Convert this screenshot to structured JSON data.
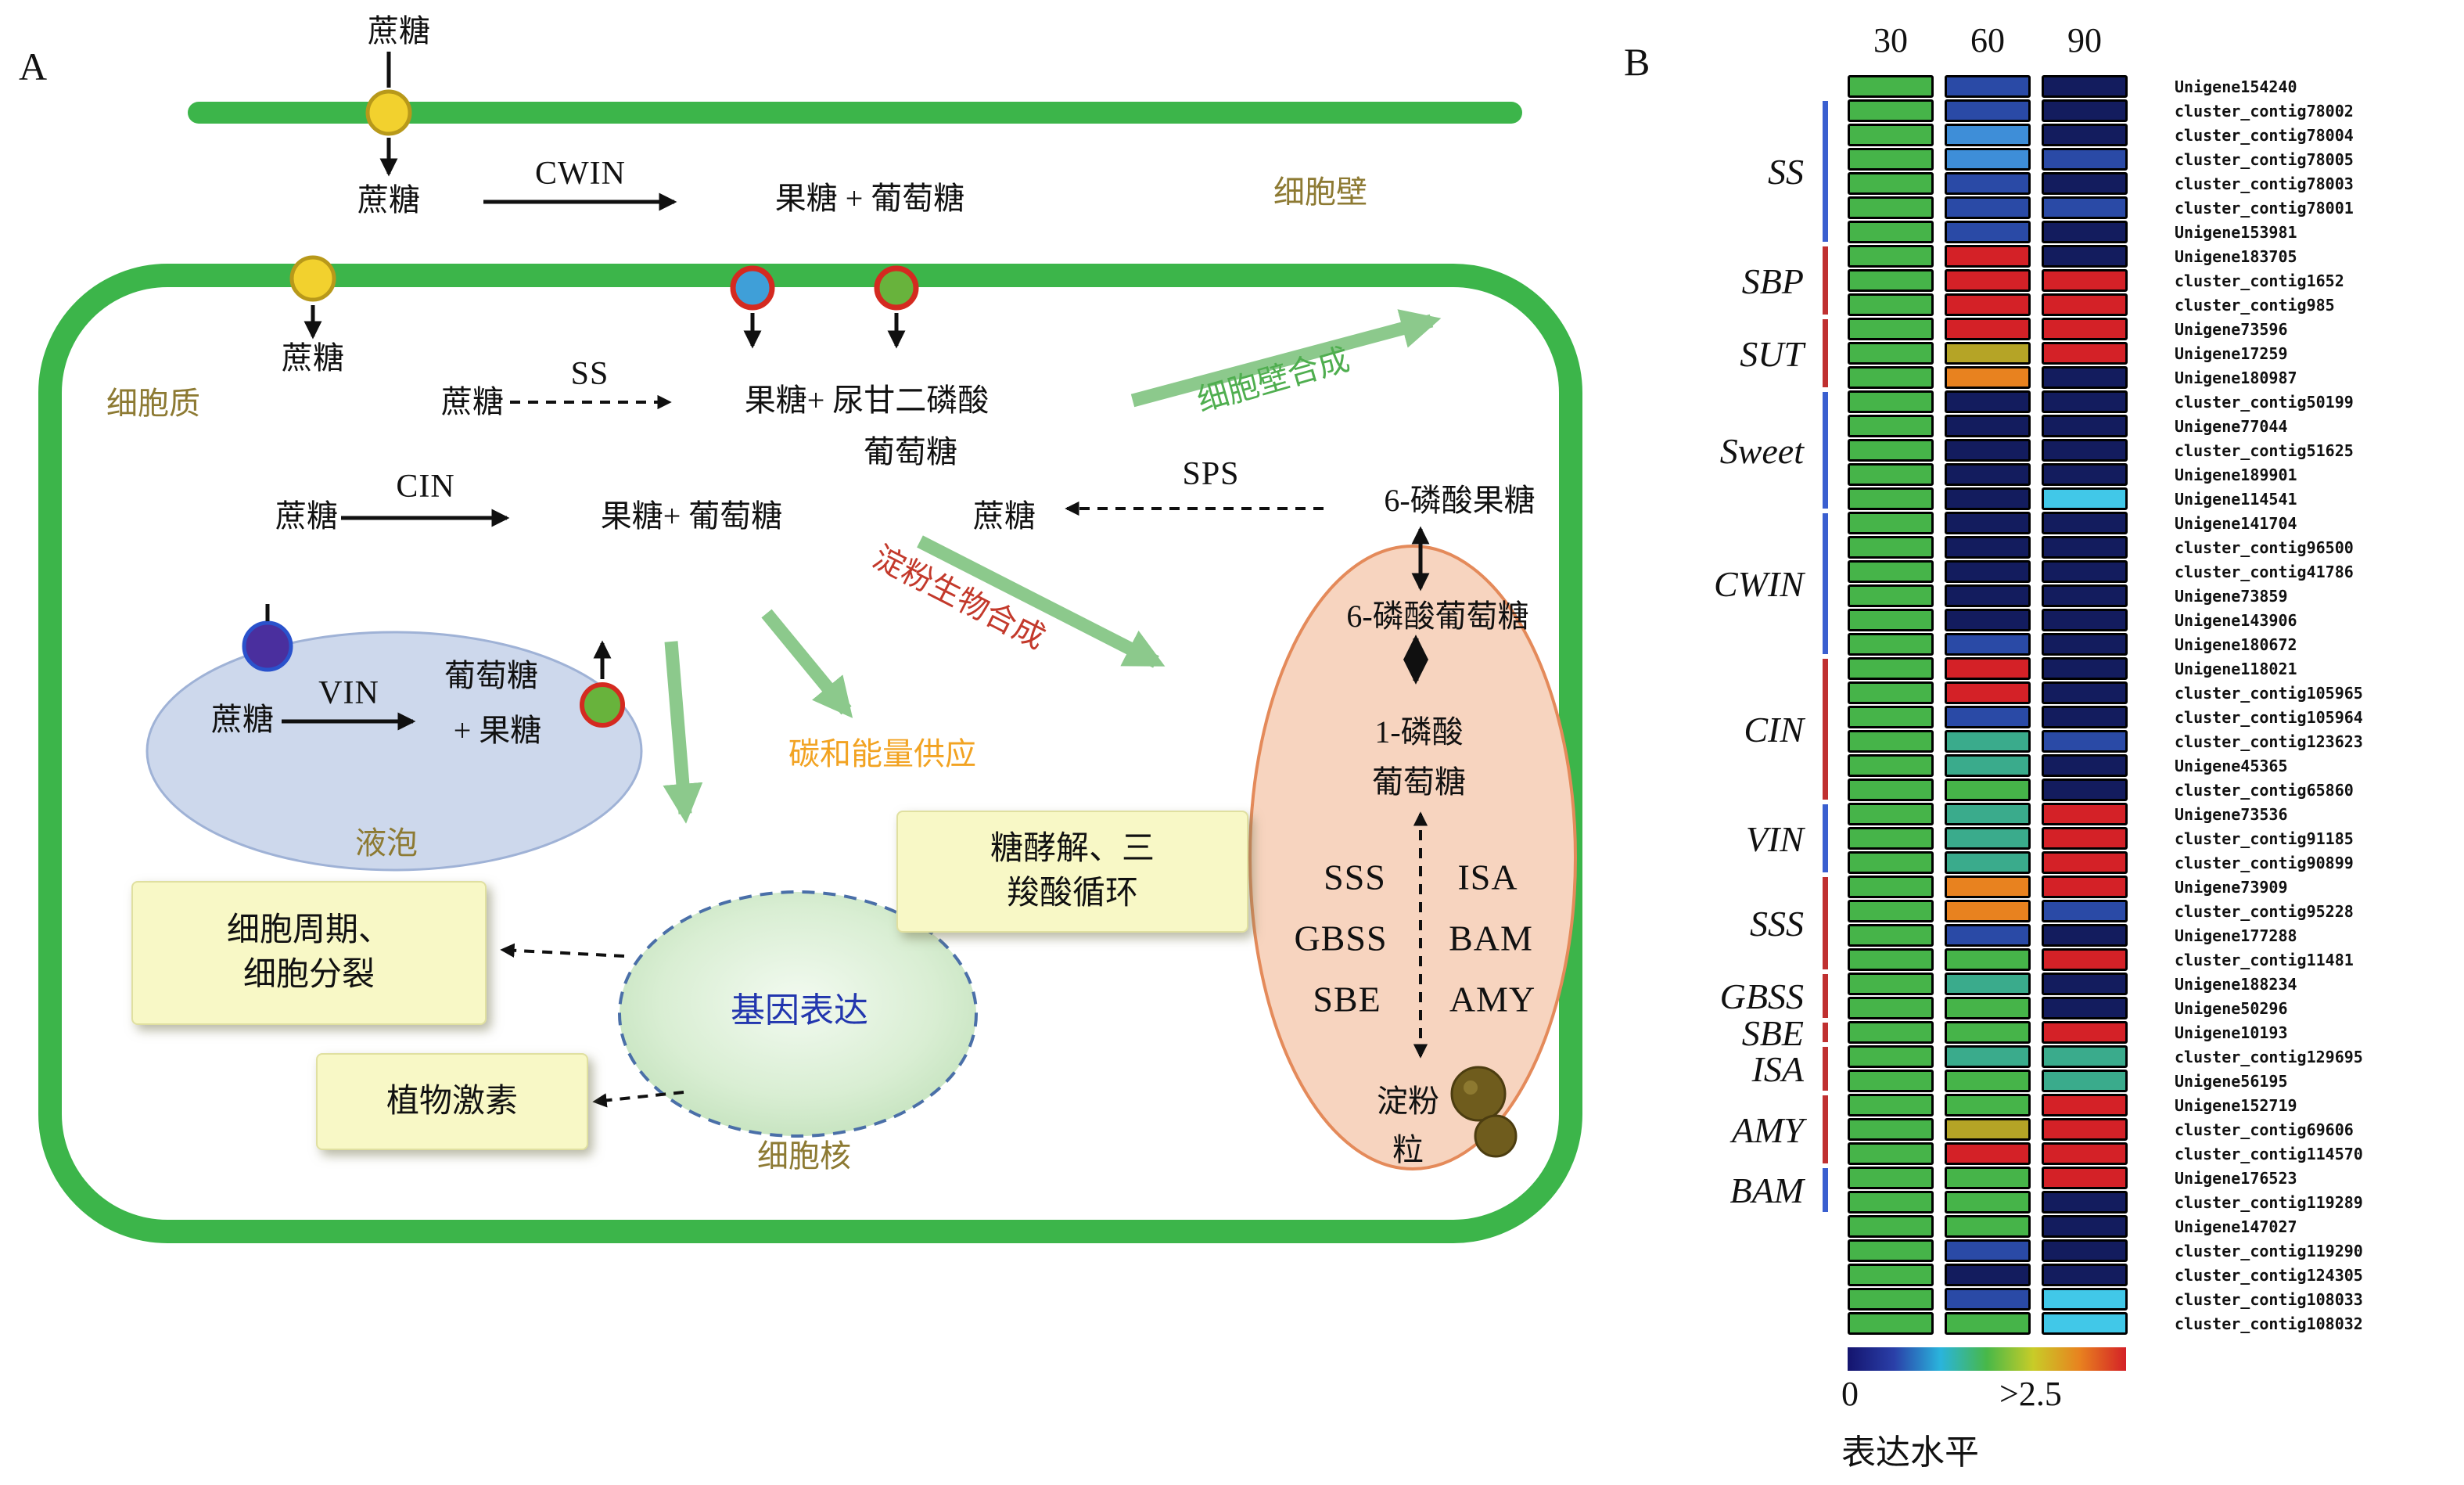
{
  "figure": {
    "panelA_label": "A",
    "panelB_label": "B"
  },
  "panelA": {
    "sucrose": "蔗糖",
    "cwin": "CWIN",
    "fructose_plus_glucose_spaced": "果糖 + 葡萄糖",
    "cell_wall": "细胞壁",
    "cytoplasm": "细胞质",
    "ss": "SS",
    "fructose_udp_glucose": "果糖+ 尿甘二磷酸",
    "glucose": "葡萄糖",
    "cell_wall_synthesis": "细胞壁合成",
    "cin": "CIN",
    "fructose_plus_glucose": "果糖+ 葡萄糖",
    "sps": "SPS",
    "fructose_6_phosphate": "6-磷酸果糖",
    "glucose_6_phosphate": "6-磷酸葡萄糖",
    "glucose_1_phosphate_line1": "1-磷酸",
    "starch_biosynthesis": "淀粉生物合成",
    "sss": "SSS",
    "isa": "ISA",
    "gbss": "GBSS",
    "bam": "BAM",
    "sbe": "SBE",
    "amy": "AMY",
    "starch_granule_line1": "淀粉",
    "starch_granule_line2": "粒",
    "vin": "VIN",
    "plus_fructose": "+ 果糖",
    "vacuole": "液泡",
    "carbon_energy_supply": "碳和能量供应",
    "glycolysis_tca_line1": "糖酵解、三",
    "glycolysis_tca_line2": "羧酸循环",
    "cell_cycle_line1": "细胞周期、",
    "cell_cycle_line2": "细胞分裂",
    "plant_hormone": "植物激素",
    "gene_expression": "基因表达",
    "nucleus": "细胞核"
  },
  "panelB": {
    "groups": [
      {
        "label": "SS",
        "bar": "#3a5fd0",
        "start": 2,
        "end": 7
      },
      {
        "label": "SBP",
        "bar": "#c03030",
        "start": 8,
        "end": 10
      },
      {
        "label": "SUT",
        "bar": "#c03030",
        "start": 11,
        "end": 13
      },
      {
        "label": "Sweet",
        "bar": "#3a5fd0",
        "start": 14,
        "end": 18
      },
      {
        "label": "CWIN",
        "bar": "#3a5fd0",
        "start": 19,
        "end": 24
      },
      {
        "label": "CIN",
        "bar": "#c03030",
        "start": 25,
        "end": 30
      },
      {
        "label": "VIN",
        "bar": "#3a5fd0",
        "start": 31,
        "end": 33
      },
      {
        "label": "SSS",
        "bar": "#c03030",
        "start": 34,
        "end": 37
      },
      {
        "label": "GBSS",
        "bar": "#c03030",
        "start": 38,
        "end": 39
      },
      {
        "label": "SBE",
        "bar": "#c03030",
        "start": 40,
        "end": 40
      },
      {
        "label": "ISA",
        "bar": "#c03030",
        "start": 41,
        "end": 42
      },
      {
        "label": "AMY",
        "bar": "#c03030",
        "start": 43,
        "end": 45
      },
      {
        "label": "BAM",
        "bar": "#3a5fd0",
        "start": 46,
        "end": 47
      }
    ],
    "colorbar": {
      "min_label": "0",
      "max_label": ">2.5",
      "axis_label": "表达水平"
    }
  },
  "chart_data": {
    "type": "heatmap",
    "columns": [
      "30",
      "60",
      "90"
    ],
    "palette": {
      "green": "#46b449",
      "blue": "#2a4aa6",
      "navy": "#131c5e",
      "lightblue": "#3e8ed8",
      "cyan": "#41c8e8",
      "red": "#d42127",
      "orange": "#e8821f",
      "olive": "#b5a426",
      "teal": "#3aab8c"
    },
    "legend": {
      "min": "0",
      "max": ">2.5",
      "label": "表达水平"
    },
    "rows": [
      {
        "id": "Unigene154240",
        "colors": [
          "green",
          "blue",
          "navy"
        ]
      },
      {
        "id": "cluster_contig78002",
        "colors": [
          "green",
          "blue",
          "navy"
        ]
      },
      {
        "id": "cluster_contig78004",
        "colors": [
          "green",
          "lightblue",
          "navy"
        ]
      },
      {
        "id": "cluster_contig78005",
        "colors": [
          "green",
          "lightblue",
          "blue"
        ]
      },
      {
        "id": "cluster_contig78003",
        "colors": [
          "green",
          "blue",
          "navy"
        ]
      },
      {
        "id": "cluster_contig78001",
        "colors": [
          "green",
          "blue",
          "blue"
        ]
      },
      {
        "id": "Unigene153981",
        "colors": [
          "green",
          "blue",
          "navy"
        ]
      },
      {
        "id": "Unigene183705",
        "colors": [
          "green",
          "red",
          "navy"
        ]
      },
      {
        "id": "cluster_contig1652",
        "colors": [
          "green",
          "red",
          "red"
        ]
      },
      {
        "id": "cluster_contig985",
        "colors": [
          "green",
          "red",
          "red"
        ]
      },
      {
        "id": "Unigene73596",
        "colors": [
          "green",
          "red",
          "red"
        ]
      },
      {
        "id": "Unigene17259",
        "colors": [
          "green",
          "olive",
          "red"
        ]
      },
      {
        "id": "Unigene180987",
        "colors": [
          "green",
          "orange",
          "navy"
        ]
      },
      {
        "id": "cluster_contig50199",
        "colors": [
          "green",
          "navy",
          "navy"
        ]
      },
      {
        "id": "Unigene77044",
        "colors": [
          "green",
          "navy",
          "navy"
        ]
      },
      {
        "id": "cluster_contig51625",
        "colors": [
          "green",
          "navy",
          "navy"
        ]
      },
      {
        "id": "Unigene189901",
        "colors": [
          "green",
          "navy",
          "navy"
        ]
      },
      {
        "id": "Unigene114541",
        "colors": [
          "green",
          "navy",
          "cyan"
        ]
      },
      {
        "id": "Unigene141704",
        "colors": [
          "green",
          "navy",
          "navy"
        ]
      },
      {
        "id": "cluster_contig96500",
        "colors": [
          "green",
          "navy",
          "navy"
        ]
      },
      {
        "id": "cluster_contig41786",
        "colors": [
          "green",
          "navy",
          "navy"
        ]
      },
      {
        "id": "Unigene73859",
        "colors": [
          "green",
          "navy",
          "navy"
        ]
      },
      {
        "id": "Unigene143906",
        "colors": [
          "green",
          "navy",
          "navy"
        ]
      },
      {
        "id": "Unigene180672",
        "colors": [
          "green",
          "blue",
          "navy"
        ]
      },
      {
        "id": "Unigene118021",
        "colors": [
          "green",
          "red",
          "navy"
        ]
      },
      {
        "id": "cluster_contig105965",
        "colors": [
          "green",
          "red",
          "navy"
        ]
      },
      {
        "id": "cluster_contig105964",
        "colors": [
          "green",
          "blue",
          "navy"
        ]
      },
      {
        "id": "cluster_contig123623",
        "colors": [
          "green",
          "teal",
          "blue"
        ]
      },
      {
        "id": "Unigene45365",
        "colors": [
          "green",
          "teal",
          "navy"
        ]
      },
      {
        "id": "cluster_contig65860",
        "colors": [
          "green",
          "green",
          "navy"
        ]
      },
      {
        "id": "Unigene73536",
        "colors": [
          "green",
          "teal",
          "red"
        ]
      },
      {
        "id": "cluster_contig91185",
        "colors": [
          "green",
          "teal",
          "red"
        ]
      },
      {
        "id": "cluster_contig90899",
        "colors": [
          "green",
          "teal",
          "red"
        ]
      },
      {
        "id": "Unigene73909",
        "colors": [
          "green",
          "orange",
          "red"
        ]
      },
      {
        "id": "cluster_contig95228",
        "colors": [
          "green",
          "orange",
          "blue"
        ]
      },
      {
        "id": "Unigene177288",
        "colors": [
          "green",
          "blue",
          "navy"
        ]
      },
      {
        "id": "cluster_contig11481",
        "colors": [
          "green",
          "green",
          "red"
        ]
      },
      {
        "id": "Unigene188234",
        "colors": [
          "green",
          "teal",
          "navy"
        ]
      },
      {
        "id": "Unigene50296",
        "colors": [
          "green",
          "green",
          "navy"
        ]
      },
      {
        "id": "Unigene10193",
        "colors": [
          "green",
          "green",
          "red"
        ]
      },
      {
        "id": "cluster_contig129695",
        "colors": [
          "green",
          "teal",
          "teal"
        ]
      },
      {
        "id": "Unigene56195",
        "colors": [
          "green",
          "green",
          "teal"
        ]
      },
      {
        "id": "Unigene152719",
        "colors": [
          "green",
          "green",
          "red"
        ]
      },
      {
        "id": "cluster_contig69606",
        "colors": [
          "green",
          "olive",
          "red"
        ]
      },
      {
        "id": "cluster_contig114570",
        "colors": [
          "green",
          "red",
          "red"
        ]
      },
      {
        "id": "Unigene176523",
        "colors": [
          "green",
          "green",
          "red"
        ]
      },
      {
        "id": "cluster_contig119289",
        "colors": [
          "green",
          "green",
          "navy"
        ]
      },
      {
        "id": "Unigene147027",
        "colors": [
          "green",
          "green",
          "navy"
        ]
      },
      {
        "id": "cluster_contig119290",
        "colors": [
          "green",
          "blue",
          "navy"
        ]
      },
      {
        "id": "cluster_contig124305",
        "colors": [
          "green",
          "navy",
          "navy"
        ]
      },
      {
        "id": "cluster_contig108033",
        "colors": [
          "green",
          "blue",
          "cyan"
        ]
      },
      {
        "id": "cluster_contig108032",
        "colors": [
          "green",
          "green",
          "cyan"
        ]
      }
    ]
  }
}
